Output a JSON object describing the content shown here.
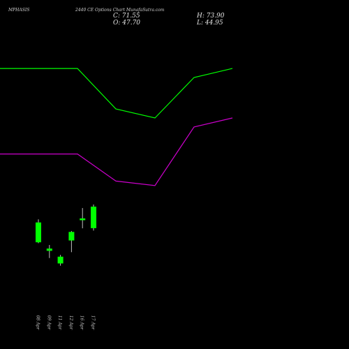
{
  "header": {
    "symbol": "MPHASIS",
    "subtitle": "2440 CE Options Chart MunafaSutra.com",
    "close": "C: 71.55",
    "high": "H: 73.90",
    "open": "O: 47.70",
    "low": "L: 44.95"
  },
  "colors": {
    "background": "#000000",
    "upper_band": "#00ff00",
    "lower_band": "#cc00cc",
    "candle": "#00ff00"
  },
  "chart_data": {
    "type": "candlestick",
    "title": "MPHASIS 2440 CE Options Chart MunafaSutra.com",
    "categories": [
      "08 Apr",
      "09 Apr",
      "11 Apr",
      "12 Apr",
      "16 Apr",
      "17 Apr"
    ],
    "candles": [
      {
        "date": "08 Apr",
        "open": 32.0,
        "high": 57.5,
        "low": 31.0,
        "close": 54.0,
        "direction": "up"
      },
      {
        "date": "09 Apr",
        "open": 25.0,
        "high": 29.0,
        "low": 14.5,
        "close": 22.5,
        "direction": "down"
      },
      {
        "date": "11 Apr",
        "open": 16.0,
        "high": 18.0,
        "low": 6.0,
        "close": 8.5,
        "direction": "down"
      },
      {
        "date": "12 Apr",
        "open": 34.0,
        "high": 44.5,
        "low": 21.0,
        "close": 43.5,
        "direction": "up"
      },
      {
        "date": "16 Apr",
        "open": 56.5,
        "high": 70.0,
        "low": 47.5,
        "close": 58.5,
        "direction": "up"
      },
      {
        "date": "17 Apr",
        "open": 47.7,
        "high": 73.9,
        "low": 44.95,
        "close": 71.55,
        "direction": "up"
      }
    ],
    "upper_band": {
      "x": [
        "08 Apr",
        "09 Apr",
        "11 Apr",
        "12 Apr",
        "16 Apr",
        "17 Apr"
      ],
      "values": [
        225,
        225,
        180,
        170,
        215,
        225
      ]
    },
    "lower_band": {
      "x": [
        "08 Apr",
        "09 Apr",
        "11 Apr",
        "12 Apr",
        "16 Apr",
        "17 Apr"
      ],
      "values": [
        130,
        130,
        100,
        95,
        160,
        170
      ]
    },
    "ylim": [
      -40,
      270
    ],
    "grid": false
  }
}
